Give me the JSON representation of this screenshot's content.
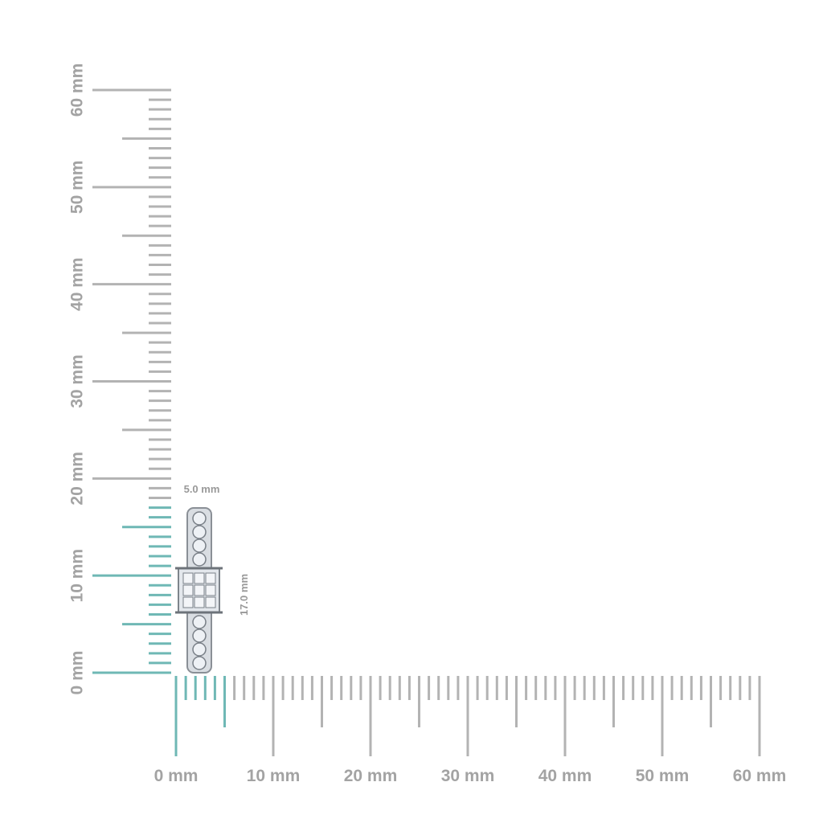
{
  "vertical_ruler": {
    "labels": [
      "0 mm",
      "10 mm",
      "20 mm",
      "30 mm",
      "40 mm",
      "50 mm",
      "60 mm"
    ]
  },
  "horizontal_ruler": {
    "labels": [
      "0 mm",
      "10 mm",
      "20 mm",
      "30 mm",
      "40 mm",
      "50 mm",
      "60 mm"
    ]
  },
  "dimensions": {
    "width": "5.0 mm",
    "height": "17.0 mm"
  }
}
